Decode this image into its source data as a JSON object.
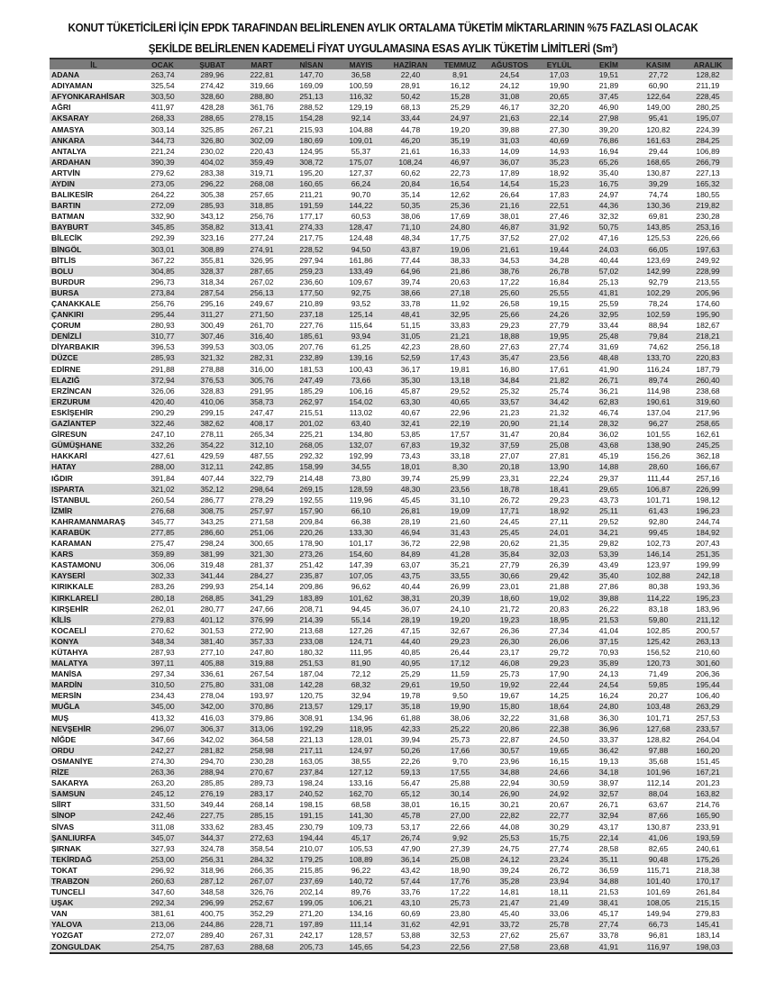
{
  "title_line1": "KONUT TÜKETİCİLERİ İÇİN EPDK TARAFINDAN BELİRLENEN AYLIK ORTALAMA TÜKETİM MİKTARLARININ %75 FAZLASI OLACAK",
  "title_line2": "ŞEKİLDE BELİRLENEN KADEMELİ FİYAT UYGULAMASINA ESAS AYLIK TÜKETİM LİMİTLERİ (Sm",
  "title_unit_sup": "3",
  "title_close": ")",
  "columns": [
    "İL",
    "OCAK",
    "ŞUBAT",
    "MART",
    "NİSAN",
    "MAYIS",
    "HAZİRAN",
    "TEMMUZ",
    "AĞUSTOS",
    "EYLÜL",
    "EKİM",
    "KASIM",
    "ARALIK"
  ],
  "rows": [
    [
      "ADANA",
      "263,74",
      "289,96",
      "222,81",
      "147,70",
      "36,58",
      "22,40",
      "8,91",
      "24,54",
      "17,03",
      "19,51",
      "27,72",
      "128,82"
    ],
    [
      "ADIYAMAN",
      "325,54",
      "274,42",
      "319,66",
      "169,09",
      "100,59",
      "28,91",
      "16,12",
      "24,12",
      "19,90",
      "21,89",
      "60,90",
      "211,19"
    ],
    [
      "AFYONKARAHİSAR",
      "303,50",
      "328,60",
      "288,80",
      "251,13",
      "116,32",
      "50,42",
      "15,28",
      "31,08",
      "20,65",
      "37,45",
      "122,64",
      "228,45"
    ],
    [
      "AĞRI",
      "411,97",
      "428,28",
      "361,76",
      "288,52",
      "129,19",
      "68,13",
      "25,29",
      "46,17",
      "32,20",
      "46,90",
      "149,00",
      "280,25"
    ],
    [
      "AKSARAY",
      "268,33",
      "288,65",
      "278,15",
      "154,28",
      "92,14",
      "33,44",
      "24,97",
      "21,63",
      "22,14",
      "27,98",
      "95,41",
      "195,07"
    ],
    [
      "AMASYA",
      "303,14",
      "325,85",
      "267,21",
      "215,93",
      "104,88",
      "44,78",
      "19,20",
      "39,88",
      "27,30",
      "39,20",
      "120,82",
      "224,39"
    ],
    [
      "ANKARA",
      "344,73",
      "326,80",
      "302,09",
      "180,69",
      "109,01",
      "46,20",
      "35,19",
      "31,03",
      "40,69",
      "76,86",
      "161,63",
      "284,25"
    ],
    [
      "ANTALYA",
      "221,24",
      "230,02",
      "220,43",
      "124,95",
      "55,37",
      "21,61",
      "16,33",
      "14,09",
      "14,93",
      "16,94",
      "29,44",
      "106,89"
    ],
    [
      "ARDAHAN",
      "390,39",
      "404,02",
      "359,49",
      "308,72",
      "175,07",
      "108,24",
      "46,97",
      "36,07",
      "35,23",
      "65,26",
      "168,65",
      "266,79"
    ],
    [
      "ARTVİN",
      "279,62",
      "283,38",
      "319,71",
      "195,20",
      "127,37",
      "60,62",
      "22,73",
      "17,89",
      "18,92",
      "35,40",
      "130,87",
      "227,13"
    ],
    [
      "AYDIN",
      "273,05",
      "296,22",
      "268,08",
      "160,65",
      "66,24",
      "20,84",
      "16,54",
      "14,54",
      "15,23",
      "16,75",
      "39,29",
      "165,32"
    ],
    [
      "BALIKESİR",
      "264,22",
      "305,38",
      "257,65",
      "211,21",
      "90,70",
      "35,14",
      "12,62",
      "26,64",
      "17,83",
      "24,97",
      "74,74",
      "180,55"
    ],
    [
      "BARTIN",
      "272,09",
      "285,93",
      "318,85",
      "191,59",
      "144,22",
      "50,35",
      "25,36",
      "21,16",
      "22,51",
      "44,36",
      "130,36",
      "219,82"
    ],
    [
      "BATMAN",
      "332,90",
      "343,12",
      "256,76",
      "177,17",
      "60,53",
      "38,06",
      "17,69",
      "38,01",
      "27,46",
      "32,32",
      "69,81",
      "230,28"
    ],
    [
      "BAYBURT",
      "345,85",
      "358,82",
      "313,41",
      "274,33",
      "128,47",
      "71,10",
      "24,80",
      "46,87",
      "31,92",
      "50,75",
      "143,85",
      "253,16"
    ],
    [
      "BİLECİK",
      "292,39",
      "323,16",
      "277,24",
      "217,75",
      "124,48",
      "48,34",
      "17,75",
      "37,52",
      "27,02",
      "47,16",
      "125,53",
      "226,66"
    ],
    [
      "BİNGÖL",
      "303,01",
      "308,89",
      "274,91",
      "228,52",
      "94,50",
      "43,87",
      "19,06",
      "21,61",
      "19,44",
      "24,03",
      "66,05",
      "197,63"
    ],
    [
      "BİTLİS",
      "367,22",
      "355,81",
      "326,95",
      "297,94",
      "161,86",
      "77,44",
      "38,33",
      "34,53",
      "34,28",
      "40,44",
      "123,69",
      "249,92"
    ],
    [
      "BOLU",
      "304,85",
      "328,37",
      "287,65",
      "259,23",
      "133,49",
      "64,96",
      "21,86",
      "38,76",
      "26,78",
      "57,02",
      "142,99",
      "228,99"
    ],
    [
      "BURDUR",
      "296,73",
      "318,34",
      "267,02",
      "236,60",
      "109,67",
      "39,74",
      "20,63",
      "17,22",
      "16,84",
      "25,13",
      "92,79",
      "213,55"
    ],
    [
      "BURSA",
      "273,84",
      "287,54",
      "256,13",
      "177,50",
      "92,75",
      "38,66",
      "27,18",
      "25,60",
      "25,55",
      "41,81",
      "102,29",
      "205,96"
    ],
    [
      "ÇANAKKALE",
      "256,76",
      "295,16",
      "249,67",
      "210,89",
      "93,52",
      "33,78",
      "11,92",
      "26,58",
      "19,15",
      "25,59",
      "78,24",
      "174,60"
    ],
    [
      "ÇANKIRI",
      "295,44",
      "311,27",
      "271,50",
      "237,18",
      "125,14",
      "48,41",
      "32,95",
      "25,66",
      "24,26",
      "32,95",
      "102,59",
      "195,90"
    ],
    [
      "ÇORUM",
      "280,93",
      "300,49",
      "261,70",
      "227,76",
      "115,64",
      "51,15",
      "33,83",
      "29,23",
      "27,79",
      "33,44",
      "88,94",
      "182,67"
    ],
    [
      "DENİZLİ",
      "310,77",
      "307,46",
      "316,40",
      "185,61",
      "93,94",
      "31,05",
      "21,21",
      "18,88",
      "19,95",
      "25,48",
      "79,84",
      "218,21"
    ],
    [
      "DİYARBAKIR",
      "396,53",
      "399,53",
      "303,05",
      "207,76",
      "61,25",
      "42,23",
      "28,60",
      "27,63",
      "27,74",
      "31,69",
      "74,62",
      "256,18"
    ],
    [
      "DÜZCE",
      "285,93",
      "321,32",
      "282,31",
      "232,89",
      "139,16",
      "52,59",
      "17,43",
      "35,47",
      "23,56",
      "48,48",
      "133,70",
      "220,83"
    ],
    [
      "EDİRNE",
      "291,88",
      "278,88",
      "316,00",
      "181,53",
      "100,43",
      "36,17",
      "19,81",
      "16,80",
      "17,61",
      "41,90",
      "116,24",
      "187,79"
    ],
    [
      "ELAZIĞ",
      "372,94",
      "376,53",
      "305,76",
      "247,49",
      "73,66",
      "35,30",
      "13,18",
      "34,84",
      "21,82",
      "26,71",
      "89,74",
      "260,40"
    ],
    [
      "ERZİNCAN",
      "326,06",
      "328,83",
      "291,95",
      "185,29",
      "106,16",
      "45,87",
      "29,52",
      "25,32",
      "25,74",
      "36,21",
      "114,98",
      "238,68"
    ],
    [
      "ERZURUM",
      "420,40",
      "410,06",
      "358,73",
      "262,97",
      "154,02",
      "63,30",
      "40,65",
      "33,57",
      "34,42",
      "62,83",
      "190,61",
      "319,60"
    ],
    [
      "ESKİŞEHİR",
      "290,29",
      "299,15",
      "247,47",
      "215,51",
      "113,02",
      "40,67",
      "22,96",
      "21,23",
      "21,32",
      "46,74",
      "137,04",
      "217,96"
    ],
    [
      "GAZİANTEP",
      "322,46",
      "382,62",
      "408,17",
      "201,02",
      "63,40",
      "32,41",
      "22,19",
      "20,90",
      "21,14",
      "28,32",
      "96,27",
      "258,65"
    ],
    [
      "GİRESUN",
      "247,10",
      "278,11",
      "265,34",
      "225,21",
      "134,80",
      "53,85",
      "17,57",
      "31,47",
      "20,84",
      "36,02",
      "101,55",
      "162,61"
    ],
    [
      "GÜMÜŞHANE",
      "332,26",
      "354,22",
      "312,10",
      "268,05",
      "132,07",
      "67,83",
      "19,32",
      "37,59",
      "25,08",
      "43,68",
      "138,90",
      "245,25"
    ],
    [
      "HAKKARİ",
      "427,61",
      "429,59",
      "487,55",
      "292,32",
      "192,99",
      "73,43",
      "33,18",
      "27,07",
      "27,81",
      "45,19",
      "156,26",
      "362,18"
    ],
    [
      "HATAY",
      "288,00",
      "312,11",
      "242,85",
      "158,99",
      "34,55",
      "18,01",
      "8,30",
      "20,18",
      "13,90",
      "14,88",
      "28,60",
      "166,67"
    ],
    [
      "IĞDIR",
      "391,84",
      "407,44",
      "322,79",
      "214,48",
      "73,80",
      "39,74",
      "25,99",
      "23,31",
      "22,24",
      "29,37",
      "111,44",
      "257,16"
    ],
    [
      "ISPARTA",
      "321,02",
      "352,12",
      "298,64",
      "269,15",
      "128,59",
      "48,30",
      "23,56",
      "18,78",
      "18,41",
      "29,65",
      "106,87",
      "226,99"
    ],
    [
      "İSTANBUL",
      "260,54",
      "286,77",
      "278,29",
      "192,55",
      "119,96",
      "45,45",
      "31,10",
      "26,72",
      "29,23",
      "43,73",
      "101,71",
      "198,12"
    ],
    [
      "İZMİR",
      "276,68",
      "308,75",
      "257,97",
      "157,90",
      "66,10",
      "26,81",
      "19,09",
      "17,71",
      "18,92",
      "25,11",
      "61,43",
      "196,23"
    ],
    [
      "KAHRAMANMARAŞ",
      "345,77",
      "343,25",
      "271,58",
      "209,84",
      "66,38",
      "28,19",
      "21,60",
      "24,45",
      "27,11",
      "29,52",
      "92,80",
      "244,74"
    ],
    [
      "KARABÜK",
      "277,85",
      "286,60",
      "251,06",
      "220,26",
      "133,30",
      "46,94",
      "31,43",
      "25,45",
      "24,01",
      "34,21",
      "99,45",
      "184,92"
    ],
    [
      "KARAMAN",
      "275,47",
      "298,24",
      "300,65",
      "178,90",
      "101,17",
      "36,72",
      "22,98",
      "20,62",
      "21,35",
      "29,82",
      "102,73",
      "207,43"
    ],
    [
      "KARS",
      "359,89",
      "381,99",
      "321,30",
      "273,26",
      "154,60",
      "84,89",
      "41,28",
      "35,84",
      "32,03",
      "53,39",
      "146,14",
      "251,35"
    ],
    [
      "KASTAMONU",
      "306,06",
      "319,48",
      "281,37",
      "251,42",
      "147,39",
      "63,07",
      "35,21",
      "27,79",
      "26,39",
      "43,49",
      "123,97",
      "199,99"
    ],
    [
      "KAYSERİ",
      "302,33",
      "341,44",
      "284,27",
      "235,87",
      "107,05",
      "43,75",
      "33,55",
      "30,66",
      "29,42",
      "35,40",
      "102,88",
      "242,18"
    ],
    [
      "KIRIKKALE",
      "283,26",
      "299,93",
      "254,14",
      "209,86",
      "96,62",
      "40,44",
      "26,99",
      "23,01",
      "21,88",
      "27,86",
      "80,38",
      "193,36"
    ],
    [
      "KIRKLARELİ",
      "280,18",
      "268,85",
      "341,29",
      "183,89",
      "101,62",
      "38,31",
      "20,39",
      "18,60",
      "19,02",
      "39,88",
      "114,22",
      "195,23"
    ],
    [
      "KIRŞEHİR",
      "262,01",
      "280,77",
      "247,66",
      "208,71",
      "94,45",
      "36,07",
      "24,10",
      "21,72",
      "20,83",
      "26,22",
      "83,18",
      "183,96"
    ],
    [
      "KİLİS",
      "279,83",
      "401,12",
      "376,99",
      "214,39",
      "55,14",
      "28,19",
      "19,20",
      "19,23",
      "18,95",
      "21,53",
      "59,80",
      "211,12"
    ],
    [
      "KOCAELİ",
      "270,62",
      "301,53",
      "272,90",
      "213,68",
      "127,26",
      "47,15",
      "32,67",
      "26,36",
      "27,34",
      "41,04",
      "102,85",
      "200,57"
    ],
    [
      "KONYA",
      "348,34",
      "381,40",
      "357,33",
      "233,08",
      "124,71",
      "44,40",
      "29,23",
      "26,30",
      "26,06",
      "37,15",
      "125,42",
      "263,13"
    ],
    [
      "KÜTAHYA",
      "287,93",
      "277,10",
      "247,80",
      "180,32",
      "111,95",
      "40,85",
      "26,44",
      "23,17",
      "29,72",
      "70,93",
      "156,52",
      "210,60"
    ],
    [
      "MALATYA",
      "397,11",
      "405,88",
      "319,88",
      "251,53",
      "81,90",
      "40,95",
      "17,12",
      "46,08",
      "29,23",
      "35,89",
      "120,73",
      "301,60"
    ],
    [
      "MANİSA",
      "297,34",
      "336,61",
      "267,54",
      "187,04",
      "72,12",
      "25,29",
      "11,59",
      "25,73",
      "17,90",
      "24,13",
      "71,49",
      "206,36"
    ],
    [
      "MARDİN",
      "310,50",
      "275,80",
      "331,08",
      "142,28",
      "68,32",
      "29,61",
      "19,50",
      "19,92",
      "22,44",
      "24,54",
      "59,85",
      "195,44"
    ],
    [
      "MERSİN",
      "234,43",
      "278,04",
      "193,97",
      "120,75",
      "32,94",
      "19,78",
      "9,50",
      "19,67",
      "14,25",
      "16,24",
      "20,27",
      "106,40"
    ],
    [
      "MUĞLA",
      "345,00",
      "342,00",
      "370,86",
      "213,57",
      "129,17",
      "35,18",
      "19,90",
      "15,80",
      "18,64",
      "24,80",
      "103,48",
      "263,29"
    ],
    [
      "MUŞ",
      "413,32",
      "416,03",
      "379,86",
      "308,91",
      "134,96",
      "61,88",
      "38,06",
      "32,22",
      "31,68",
      "36,30",
      "101,71",
      "257,53"
    ],
    [
      "NEVŞEHİR",
      "296,07",
      "306,37",
      "313,06",
      "192,29",
      "118,95",
      "42,33",
      "25,22",
      "20,86",
      "22,38",
      "36,96",
      "127,68",
      "233,57"
    ],
    [
      "NİĞDE",
      "347,66",
      "342,02",
      "364,58",
      "221,13",
      "128,01",
      "39,94",
      "25,73",
      "22,87",
      "24,50",
      "33,37",
      "128,82",
      "264,04"
    ],
    [
      "ORDU",
      "242,27",
      "281,82",
      "258,98",
      "217,11",
      "124,97",
      "50,26",
      "17,66",
      "30,57",
      "19,65",
      "36,42",
      "97,88",
      "160,20"
    ],
    [
      "OSMANİYE",
      "274,30",
      "294,70",
      "230,28",
      "163,05",
      "38,55",
      "22,26",
      "9,70",
      "23,96",
      "16,15",
      "19,13",
      "35,68",
      "151,45"
    ],
    [
      "RİZE",
      "263,36",
      "288,94",
      "270,67",
      "237,84",
      "127,12",
      "59,13",
      "17,55",
      "34,88",
      "24,66",
      "34,18",
      "101,96",
      "167,21"
    ],
    [
      "SAKARYA",
      "263,20",
      "285,85",
      "289,73",
      "198,24",
      "133,16",
      "56,47",
      "25,88",
      "22,94",
      "30,59",
      "38,97",
      "112,14",
      "201,23"
    ],
    [
      "SAMSUN",
      "245,12",
      "276,19",
      "283,17",
      "240,52",
      "162,70",
      "65,12",
      "30,14",
      "26,90",
      "24,92",
      "32,57",
      "88,04",
      "163,82"
    ],
    [
      "SİİRT",
      "331,50",
      "349,44",
      "268,14",
      "198,15",
      "68,58",
      "38,01",
      "16,15",
      "30,21",
      "20,67",
      "26,71",
      "63,67",
      "214,76"
    ],
    [
      "SİNOP",
      "242,46",
      "227,75",
      "285,15",
      "191,15",
      "141,30",
      "45,78",
      "27,00",
      "22,82",
      "22,77",
      "32,94",
      "87,66",
      "165,90"
    ],
    [
      "SİVAS",
      "311,08",
      "333,62",
      "283,45",
      "230,79",
      "109,73",
      "53,17",
      "22,66",
      "44,08",
      "30,29",
      "43,17",
      "130,87",
      "233,91"
    ],
    [
      "ŞANLIURFA",
      "345,07",
      "344,37",
      "272,63",
      "194,44",
      "45,17",
      "26,74",
      "9,92",
      "25,53",
      "15,75",
      "22,14",
      "41,06",
      "193,59"
    ],
    [
      "ŞIRNAK",
      "327,93",
      "324,78",
      "358,54",
      "210,07",
      "105,53",
      "47,90",
      "27,39",
      "24,75",
      "27,74",
      "28,58",
      "82,65",
      "240,61"
    ],
    [
      "TEKİRDAĞ",
      "253,00",
      "256,31",
      "284,32",
      "179,25",
      "108,89",
      "36,14",
      "25,08",
      "24,12",
      "23,24",
      "35,11",
      "90,48",
      "175,26"
    ],
    [
      "TOKAT",
      "296,92",
      "318,96",
      "266,35",
      "215,85",
      "96,22",
      "43,42",
      "18,90",
      "39,24",
      "26,72",
      "36,59",
      "115,71",
      "218,38"
    ],
    [
      "TRABZON",
      "260,63",
      "287,12",
      "267,07",
      "237,69",
      "140,72",
      "57,44",
      "17,76",
      "35,28",
      "23,94",
      "34,88",
      "101,40",
      "170,17"
    ],
    [
      "TUNCELİ",
      "347,60",
      "348,58",
      "326,76",
      "202,14",
      "89,76",
      "33,76",
      "17,22",
      "14,81",
      "18,11",
      "21,53",
      "101,69",
      "261,84"
    ],
    [
      "UŞAK",
      "292,34",
      "296,99",
      "252,67",
      "199,05",
      "106,21",
      "43,10",
      "25,73",
      "21,47",
      "21,49",
      "38,41",
      "108,05",
      "215,15"
    ],
    [
      "VAN",
      "381,61",
      "400,75",
      "352,29",
      "271,20",
      "134,16",
      "60,69",
      "23,80",
      "45,40",
      "33,06",
      "45,17",
      "149,94",
      "279,83"
    ],
    [
      "YALOVA",
      "213,06",
      "244,86",
      "228,71",
      "197,89",
      "111,14",
      "31,62",
      "42,91",
      "33,72",
      "25,78",
      "27,74",
      "66,73",
      "145,41"
    ],
    [
      "YOZGAT",
      "272,07",
      "289,40",
      "267,31",
      "242,17",
      "128,57",
      "53,88",
      "32,53",
      "27,62",
      "25,67",
      "33,78",
      "96,81",
      "183,14"
    ],
    [
      "ZONGULDAK",
      "254,75",
      "287,63",
      "288,68",
      "205,73",
      "145,65",
      "54,23",
      "22,56",
      "27,58",
      "23,68",
      "41,91",
      "116,97",
      "198,03"
    ]
  ]
}
